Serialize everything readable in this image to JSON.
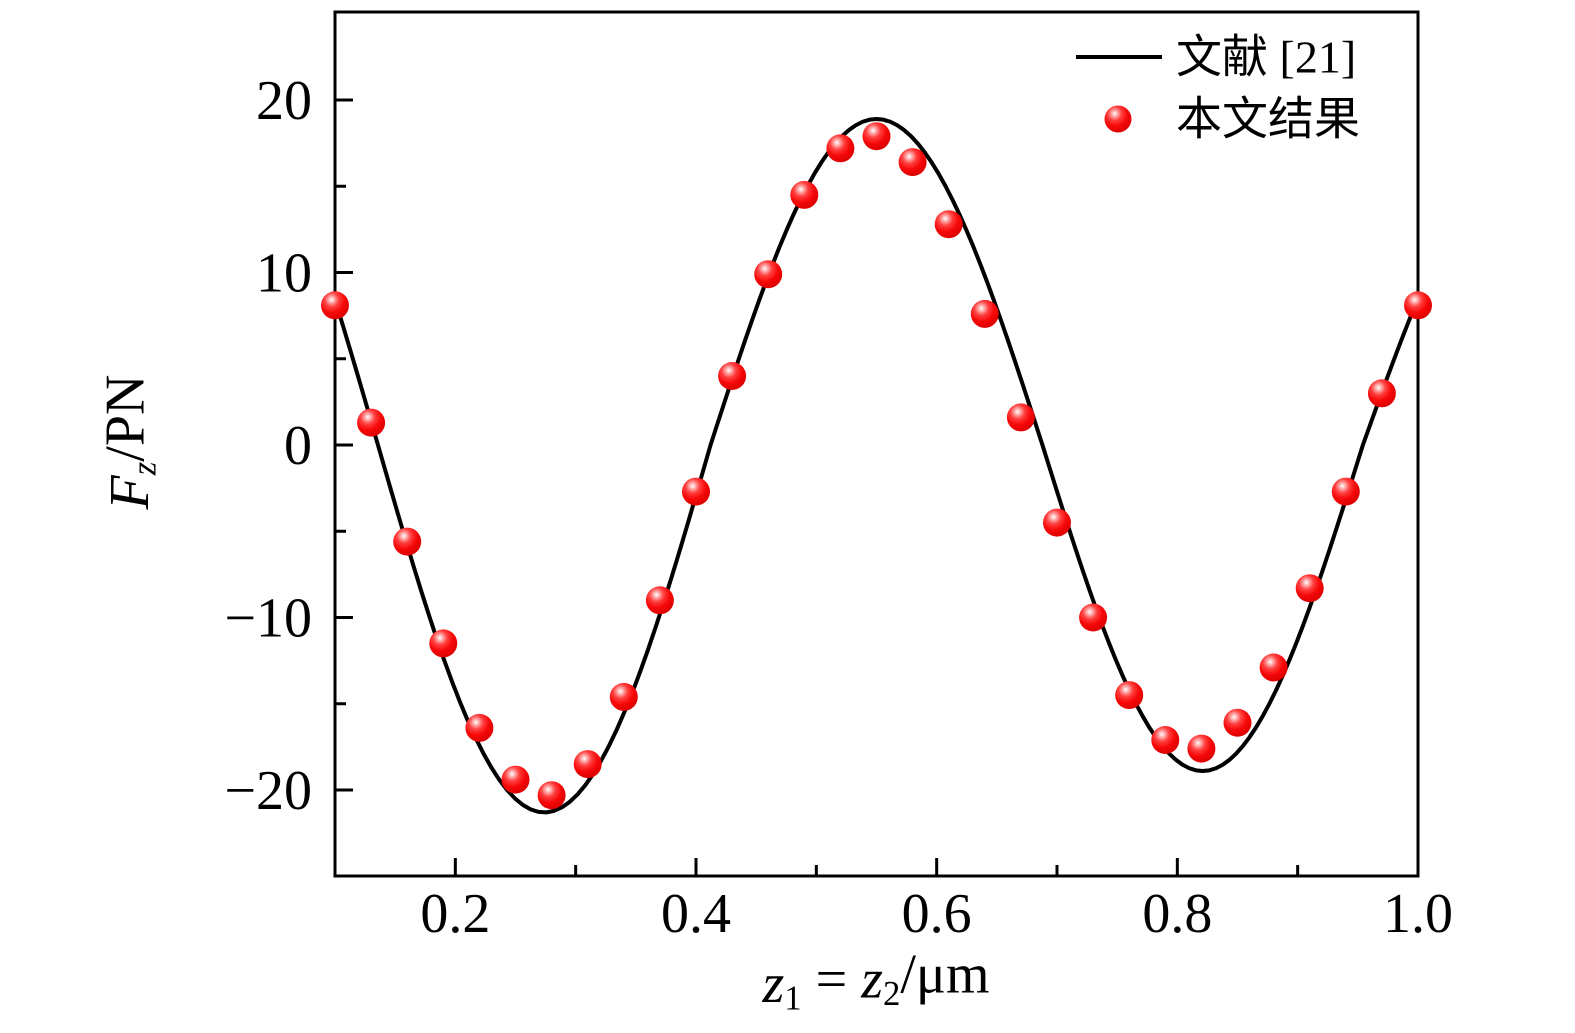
{
  "chart_data": {
    "type": "line+scatter",
    "title": "",
    "xlabel_plain": "z1 = z2/μm",
    "ylabel_plain": "Fz/PN",
    "xlabel_parts": [
      {
        "text": "z",
        "italic": true,
        "sub": false
      },
      {
        "text": "1",
        "italic": false,
        "sub": true
      },
      {
        "text": " = ",
        "italic": false,
        "sub": false
      },
      {
        "text": "z",
        "italic": true,
        "sub": false
      },
      {
        "text": "2",
        "italic": false,
        "sub": true
      },
      {
        "text": "/μm",
        "italic": false,
        "sub": false
      }
    ],
    "ylabel_parts": [
      {
        "text": "F",
        "italic": true,
        "sub": false
      },
      {
        "text": "z",
        "italic": true,
        "sub": true
      },
      {
        "text": "/PN",
        "italic": false,
        "sub": false
      }
    ],
    "xlim": [
      0.1,
      1.0
    ],
    "ylim": [
      -25,
      25
    ],
    "x_ticks_major": [
      {
        "v": 0.2,
        "label": "0.2"
      },
      {
        "v": 0.4,
        "label": "0.4"
      },
      {
        "v": 0.6,
        "label": "0.6"
      },
      {
        "v": 0.8,
        "label": "0.8"
      },
      {
        "v": 1.0,
        "label": "1.0"
      }
    ],
    "x_ticks_minor": [
      0.3,
      0.5,
      0.7,
      0.9
    ],
    "y_ticks_major": [
      {
        "v": 20,
        "label": "20"
      },
      {
        "v": 10,
        "label": "10"
      },
      {
        "v": 0,
        "label": "0"
      },
      {
        "v": -10,
        "label": "−10"
      },
      {
        "v": -20,
        "label": "−20"
      }
    ],
    "y_ticks_minor": [
      15,
      5,
      -5,
      -15
    ],
    "grid": false,
    "legend_position": "top-right-inside",
    "legend": [
      {
        "label": "文献 [21]",
        "type": "line",
        "color": "#000000"
      },
      {
        "label": "本文结果",
        "type": "sphere",
        "color": "#f20d0d"
      }
    ],
    "colors": {
      "curve": "#000000",
      "marker": "#f20d0d",
      "marker_edge": "#d80000",
      "axis": "#000000",
      "background": "#ffffff"
    },
    "series": [
      {
        "name": "文献 [21]",
        "type": "line",
        "color": "#000000",
        "curve_segments": [
          {
            "x0": 0.1,
            "x1": 0.4121,
            "zero": 0.1357,
            "half_period": 0.2764,
            "amplitude": -21.3
          },
          {
            "x0": 0.4121,
            "x1": 0.6879,
            "zero": 0.4121,
            "half_period": 0.2758,
            "amplitude": 18.9
          },
          {
            "x0": 0.6879,
            "x1": 0.9542,
            "zero": 0.6879,
            "half_period": 0.2663,
            "amplitude": -18.9
          },
          {
            "x0": 0.9542,
            "x1": 1.0,
            "zero": 0.9542,
            "half_period": 0.2663,
            "amplitude": 16.5
          }
        ],
        "extrema_readings": [
          {
            "x": 0.276,
            "y": -21.3
          },
          {
            "x": 0.551,
            "y": 18.9
          },
          {
            "x": 0.82,
            "y": -18.9
          }
        ]
      },
      {
        "name": "本文结果",
        "type": "scatter",
        "color": "#f20d0d",
        "points": [
          [
            0.1,
            8.1
          ],
          [
            0.13,
            1.3
          ],
          [
            0.16,
            -5.6
          ],
          [
            0.19,
            -11.5
          ],
          [
            0.22,
            -16.4
          ],
          [
            0.25,
            -19.4
          ],
          [
            0.28,
            -20.3
          ],
          [
            0.31,
            -18.5
          ],
          [
            0.34,
            -14.6
          ],
          [
            0.37,
            -9.0
          ],
          [
            0.4,
            -2.7
          ],
          [
            0.43,
            4.0
          ],
          [
            0.46,
            9.9
          ],
          [
            0.49,
            14.5
          ],
          [
            0.52,
            17.2
          ],
          [
            0.55,
            17.9
          ],
          [
            0.58,
            16.4
          ],
          [
            0.61,
            12.8
          ],
          [
            0.64,
            7.6
          ],
          [
            0.67,
            1.6
          ],
          [
            0.7,
            -4.5
          ],
          [
            0.73,
            -10.0
          ],
          [
            0.76,
            -14.5
          ],
          [
            0.79,
            -17.1
          ],
          [
            0.82,
            -17.6
          ],
          [
            0.85,
            -16.1
          ],
          [
            0.88,
            -12.9
          ],
          [
            0.91,
            -8.3
          ],
          [
            0.94,
            -2.7
          ],
          [
            0.97,
            3.0
          ],
          [
            1.0,
            8.1
          ]
        ]
      }
    ]
  }
}
